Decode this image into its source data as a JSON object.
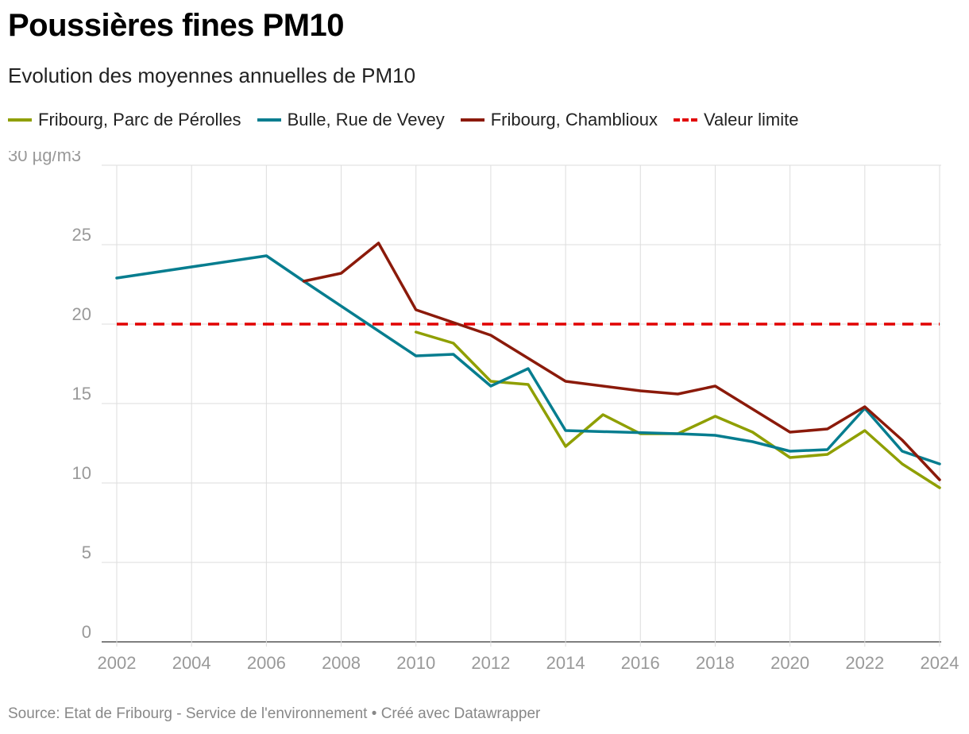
{
  "title": "Poussières fines PM10",
  "subtitle": "Evolution des moyennes annuelles de PM10",
  "footer": {
    "source": "Source: Etat de Fribourg - Service de l'environnement",
    "separator": "•",
    "credit": "Créé avec Datawrapper"
  },
  "legend": [
    {
      "label": "Fribourg, Parc de Pérolles",
      "color": "#8f9f00",
      "style": "solid"
    },
    {
      "label": "Bulle, Rue de Vevey",
      "color": "#067d8f",
      "style": "solid"
    },
    {
      "label": "Fribourg, Chamblioux",
      "color": "#8b1a0a",
      "style": "solid"
    },
    {
      "label": "Valeur limite",
      "color": "#e10000",
      "style": "dashed"
    }
  ],
  "chart_data": {
    "type": "line",
    "title": "Poussières fines PM10",
    "ylabel": "µg/m3",
    "xlim": [
      2002,
      2024
    ],
    "ylim": [
      0,
      30
    ],
    "y_ticks": [
      0,
      5,
      10,
      15,
      20,
      25,
      30
    ],
    "y_tick_labels": [
      "0",
      "5",
      "10",
      "15",
      "20",
      "25",
      "30 µg/m3"
    ],
    "x_ticks": [
      2002,
      2004,
      2006,
      2008,
      2010,
      2012,
      2014,
      2016,
      2018,
      2020,
      2022,
      2024
    ],
    "x_tick_labels": [
      "2002",
      "2004",
      "2006",
      "2008",
      "2010",
      "2012",
      "2014",
      "2016",
      "2018",
      "2020",
      "2022",
      "2024"
    ],
    "grid": true,
    "series": [
      {
        "name": "Fribourg, Parc de Pérolles",
        "color": "#8f9f00",
        "x": [
          2010,
          2011,
          2012,
          2013,
          2014,
          2015,
          2016,
          2017,
          2018,
          2019,
          2020,
          2021,
          2022,
          2023,
          2024
        ],
        "values": [
          19.5,
          18.8,
          16.4,
          16.2,
          12.3,
          14.3,
          13.1,
          13.1,
          14.2,
          13.2,
          11.6,
          11.8,
          13.3,
          11.2,
          9.7
        ]
      },
      {
        "name": "Bulle, Rue de Vevey",
        "color": "#067d8f",
        "x": [
          2002,
          2006,
          2007,
          2010,
          2011,
          2012,
          2013,
          2014,
          2017,
          2018,
          2019,
          2020,
          2021,
          2022,
          2023,
          2024
        ],
        "values": [
          22.9,
          24.3,
          22.7,
          18.0,
          18.1,
          16.1,
          17.2,
          13.3,
          13.1,
          13.0,
          12.6,
          12.0,
          12.1,
          14.7,
          12.0,
          11.2
        ]
      },
      {
        "name": "Fribourg, Chamblioux",
        "color": "#8b1a0a",
        "x": [
          2007,
          2008,
          2009,
          2010,
          2011,
          2012,
          2014,
          2016,
          2017,
          2018,
          2020,
          2021,
          2022,
          2023,
          2024
        ],
        "values": [
          22.7,
          23.2,
          25.1,
          20.9,
          20.1,
          19.3,
          16.4,
          15.8,
          15.6,
          16.1,
          13.2,
          13.4,
          14.8,
          12.7,
          10.2
        ]
      },
      {
        "name": "Valeur limite",
        "color": "#e10000",
        "style": "dashed",
        "x": [
          2002,
          2024
        ],
        "values": [
          20,
          20
        ]
      }
    ]
  }
}
